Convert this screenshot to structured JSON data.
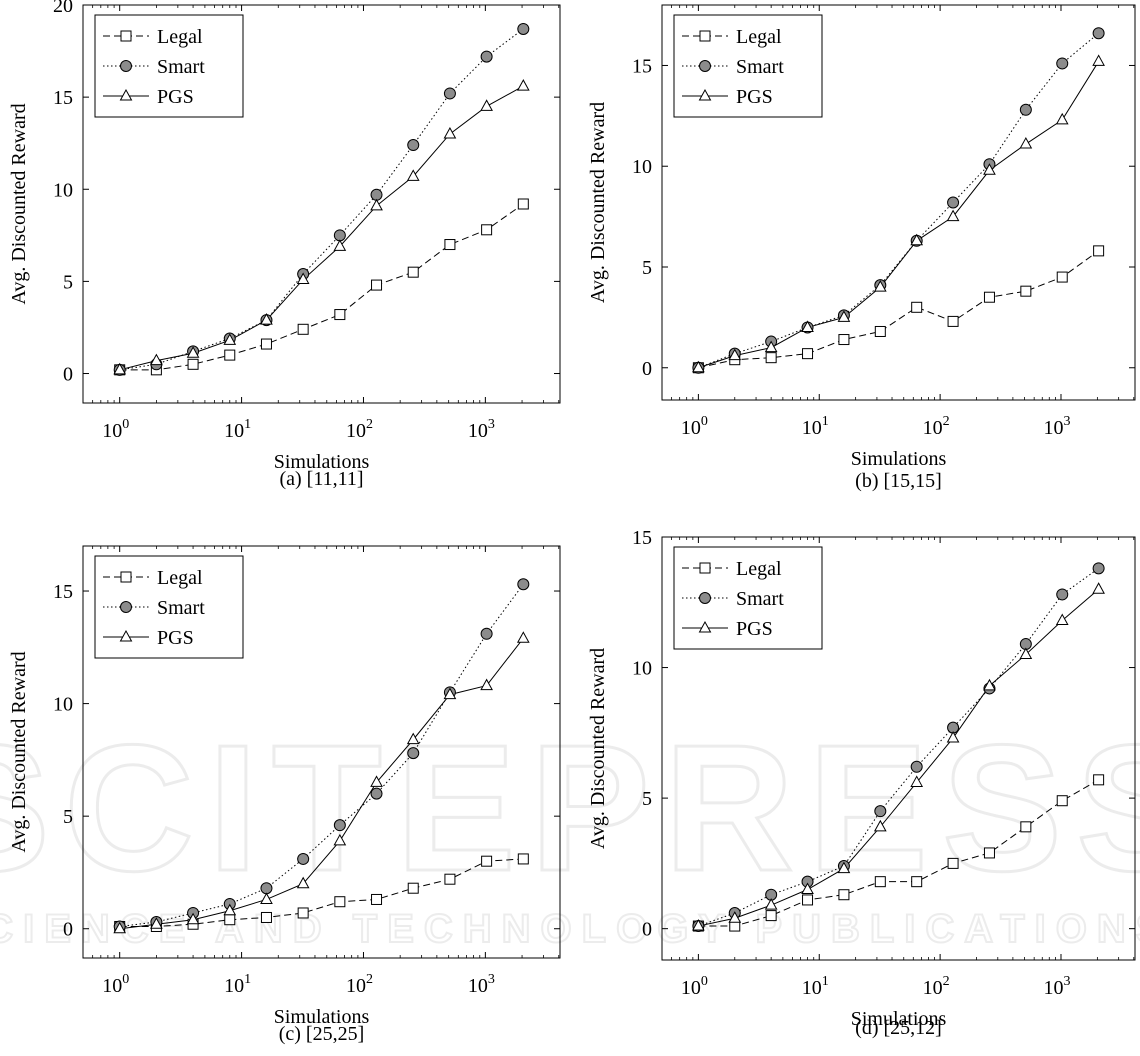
{
  "watermark": {
    "line1": "SCITEPRESS",
    "line2": "SCIENCE AND TECHNOLOGY PUBLICATIONS"
  },
  "chart_data": [
    {
      "type": "line",
      "caption": "(a) [11,11]",
      "xlabel": "Simulations",
      "ylabel": "Avg. Discounted Reward",
      "xscale": "log",
      "xlim": [
        0.5,
        4096
      ],
      "ylim": [
        -1.6,
        20
      ],
      "yticks": [
        0,
        5,
        10,
        15,
        20
      ],
      "xticks": [
        {
          "base": "10",
          "exp": "0",
          "value": 1
        },
        {
          "base": "10",
          "exp": "1",
          "value": 10
        },
        {
          "base": "10",
          "exp": "2",
          "value": 100
        },
        {
          "base": "10",
          "exp": "3",
          "value": 1000
        }
      ],
      "legend_position": "top-left",
      "x": [
        1,
        2,
        4,
        8,
        16,
        32,
        64,
        128,
        256,
        512,
        1024,
        2048
      ],
      "series": [
        {
          "name": "Legal",
          "marker": "square",
          "dash": "dashed",
          "values": [
            0.2,
            0.2,
            0.5,
            1.0,
            1.6,
            2.4,
            3.2,
            4.8,
            5.5,
            7.0,
            7.8,
            9.2
          ]
        },
        {
          "name": "Smart",
          "marker": "circle",
          "dash": "dotted",
          "values": [
            0.2,
            0.5,
            1.2,
            1.9,
            2.9,
            5.4,
            7.5,
            9.7,
            12.4,
            15.2,
            17.2,
            18.7
          ]
        },
        {
          "name": "PGS",
          "marker": "triangle",
          "dash": "solid",
          "values": [
            0.2,
            0.7,
            1.1,
            1.8,
            2.9,
            5.1,
            6.9,
            9.1,
            10.7,
            13.0,
            14.5,
            15.6
          ]
        }
      ]
    },
    {
      "type": "line",
      "caption": "(b) [15,15]",
      "xlabel": "Simulations",
      "ylabel": "Avg. Discounted Reward",
      "xscale": "log",
      "xlim": [
        0.5,
        4096
      ],
      "ylim": [
        -1.6,
        18
      ],
      "yticks": [
        0,
        5,
        10,
        15
      ],
      "xticks": [
        {
          "base": "10",
          "exp": "0",
          "value": 1
        },
        {
          "base": "10",
          "exp": "1",
          "value": 10
        },
        {
          "base": "10",
          "exp": "2",
          "value": 100
        },
        {
          "base": "10",
          "exp": "3",
          "value": 1000
        }
      ],
      "legend_position": "top-left",
      "x": [
        1,
        2,
        4,
        8,
        16,
        32,
        64,
        128,
        256,
        512,
        1024,
        2048
      ],
      "series": [
        {
          "name": "Legal",
          "marker": "square",
          "dash": "dashed",
          "values": [
            0.0,
            0.4,
            0.5,
            0.7,
            1.4,
            1.8,
            3.0,
            2.3,
            3.5,
            3.8,
            4.5,
            5.8
          ]
        },
        {
          "name": "Smart",
          "marker": "circle",
          "dash": "dotted",
          "values": [
            0.0,
            0.7,
            1.3,
            2.0,
            2.6,
            4.1,
            6.3,
            8.2,
            10.1,
            12.8,
            15.1,
            16.6
          ]
        },
        {
          "name": "PGS",
          "marker": "triangle",
          "dash": "solid",
          "values": [
            0.0,
            0.6,
            1.0,
            2.0,
            2.5,
            4.0,
            6.3,
            7.5,
            9.8,
            11.1,
            12.3,
            15.2
          ]
        }
      ]
    },
    {
      "type": "line",
      "caption": "(c) [25,25]",
      "xlabel": "Simulations",
      "ylabel": "Avg. Discounted Reward",
      "xscale": "log",
      "xlim": [
        0.5,
        4096
      ],
      "ylim": [
        -1.3,
        17
      ],
      "yticks": [
        0,
        5,
        10,
        15
      ],
      "xticks": [
        {
          "base": "10",
          "exp": "0",
          "value": 1
        },
        {
          "base": "10",
          "exp": "1",
          "value": 10
        },
        {
          "base": "10",
          "exp": "2",
          "value": 100
        },
        {
          "base": "10",
          "exp": "3",
          "value": 1000
        }
      ],
      "legend_position": "top-left",
      "x": [
        1,
        2,
        4,
        8,
        16,
        32,
        64,
        128,
        256,
        512,
        1024,
        2048
      ],
      "series": [
        {
          "name": "Legal",
          "marker": "square",
          "dash": "dashed",
          "values": [
            0.1,
            0.1,
            0.2,
            0.4,
            0.5,
            0.7,
            1.2,
            1.3,
            1.8,
            2.2,
            3.0,
            3.1
          ]
        },
        {
          "name": "Smart",
          "marker": "circle",
          "dash": "dotted",
          "values": [
            0.1,
            0.3,
            0.7,
            1.1,
            1.8,
            3.1,
            4.6,
            6.0,
            7.8,
            10.5,
            13.1,
            15.3
          ]
        },
        {
          "name": "PGS",
          "marker": "triangle",
          "dash": "solid",
          "values": [
            0.0,
            0.2,
            0.4,
            0.8,
            1.3,
            2.0,
            3.9,
            6.5,
            8.4,
            10.4,
            10.8,
            12.9
          ]
        }
      ]
    },
    {
      "type": "line",
      "caption": "(d) [25,12]",
      "xlabel": "Simulations",
      "ylabel": "Avg. Discounted Reward",
      "xscale": "log",
      "xlim": [
        0.5,
        4096
      ],
      "ylim": [
        -1.2,
        15
      ],
      "yticks": [
        0,
        5,
        10,
        15
      ],
      "xticks": [
        {
          "base": "10",
          "exp": "0",
          "value": 1
        },
        {
          "base": "10",
          "exp": "1",
          "value": 10
        },
        {
          "base": "10",
          "exp": "2",
          "value": 100
        },
        {
          "base": "10",
          "exp": "3",
          "value": 1000
        }
      ],
      "legend_position": "top-left",
      "x": [
        1,
        2,
        4,
        8,
        16,
        32,
        64,
        128,
        256,
        512,
        1024,
        2048
      ],
      "series": [
        {
          "name": "Legal",
          "marker": "square",
          "dash": "dashed",
          "values": [
            0.1,
            0.1,
            0.5,
            1.1,
            1.3,
            1.8,
            1.8,
            2.5,
            2.9,
            3.9,
            4.9,
            5.7
          ]
        },
        {
          "name": "Smart",
          "marker": "circle",
          "dash": "dotted",
          "values": [
            0.1,
            0.6,
            1.3,
            1.8,
            2.4,
            4.5,
            6.2,
            7.7,
            9.2,
            10.9,
            12.8,
            13.8
          ]
        },
        {
          "name": "PGS",
          "marker": "triangle",
          "dash": "solid",
          "values": [
            0.1,
            0.4,
            0.9,
            1.5,
            2.3,
            3.9,
            5.6,
            7.3,
            9.3,
            10.5,
            11.8,
            13.0
          ]
        }
      ]
    }
  ]
}
